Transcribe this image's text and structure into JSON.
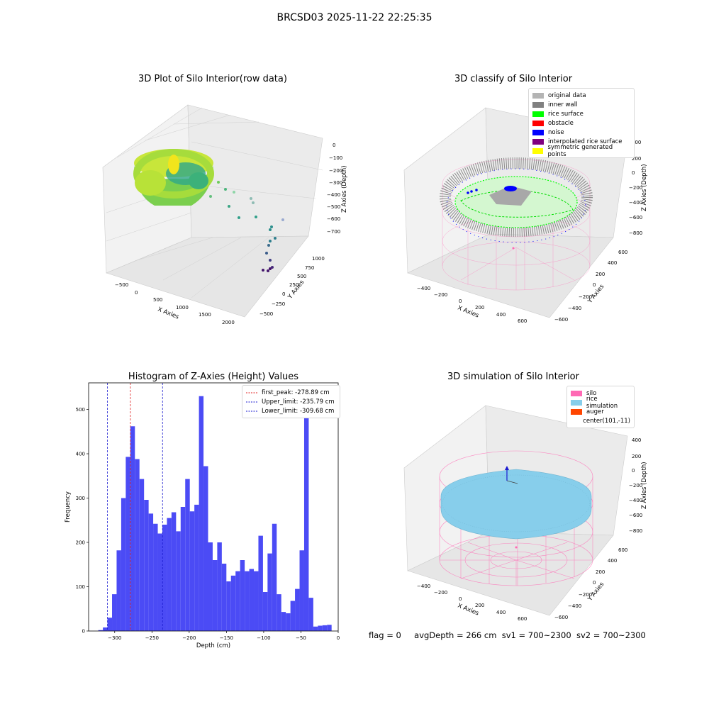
{
  "suptitle": "BRCSD03 2025-11-22 22:25:35",
  "colors": {
    "hist_bar": "#4b4bf5",
    "first_peak_line": "#e02020",
    "limit_line": "#1a1ad0",
    "silo_pink": "#ff69b4",
    "rice_blue": "#87ceeb",
    "auger": "#ff4500"
  },
  "plots": {
    "raw": {
      "title": "3D Plot of Silo Interior(row data)",
      "xlabel": "X Axies",
      "ylabel": "Y Axies",
      "zlabel": "Z Axies (Depth)",
      "xticks": [
        "−500",
        "0",
        "500",
        "1000",
        "1500",
        "2000"
      ],
      "yticks": [
        "−500",
        "−250",
        "0",
        "250",
        "500",
        "750",
        "1000"
      ],
      "zticks": [
        "0",
        "−100",
        "−200",
        "−300",
        "−400",
        "−500",
        "−600",
        "−700"
      ]
    },
    "classify": {
      "title": "3D classify of Silo Interior",
      "xlabel": "X Axies",
      "ylabel": "Y Axies",
      "zlabel": "Z Axies (Depth)",
      "xticks": [
        "−400",
        "−200",
        "0",
        "200",
        "400",
        "600"
      ],
      "yticks": [
        "−600",
        "−400",
        "−200",
        "0",
        "200",
        "400",
        "600"
      ],
      "zticks": [
        "400",
        "200",
        "0",
        "−200",
        "−400",
        "−600",
        "−800"
      ],
      "legend": [
        {
          "label": "original data",
          "color": "#b4b4b4"
        },
        {
          "label": "inner wall",
          "color": "#808080"
        },
        {
          "label": "rice surface",
          "color": "#00ff00"
        },
        {
          "label": "obstacle",
          "color": "#ff0000"
        },
        {
          "label": "noise",
          "color": "#0000ff"
        },
        {
          "label": "interpolated rice surface",
          "color": "#800080"
        },
        {
          "label": "symmetric generated points",
          "color": "#ffff00"
        }
      ]
    },
    "simulation": {
      "title": "3D simulation of Silo Interior",
      "xlabel": "X Axies",
      "ylabel": "Y Axies",
      "zlabel": "Z Axies (Depth)",
      "xticks": [
        "−400",
        "−200",
        "0",
        "200",
        "400",
        "600"
      ],
      "yticks": [
        "−600",
        "−400",
        "−200",
        "0",
        "200",
        "400",
        "600"
      ],
      "zticks": [
        "400",
        "200",
        "0",
        "−200",
        "−400",
        "−600",
        "−800"
      ],
      "legend": [
        {
          "label": "silo",
          "color": "#ff69b4"
        },
        {
          "label": "rice simulation",
          "color": "#87ceeb"
        },
        {
          "label": "auger",
          "color": "#ff4500"
        },
        {
          "label": "center(101,-11)",
          "color": ""
        }
      ]
    }
  },
  "chart_data": {
    "type": "bar",
    "title": "Histogram of Z-Axies (Height) Values",
    "xlabel": "Depth (cm)",
    "ylabel": "Frequency",
    "xlim": [
      -335,
      0
    ],
    "ylim": [
      0,
      560
    ],
    "xticks": [
      -300,
      -250,
      -200,
      -150,
      -100,
      -50,
      0
    ],
    "yticks": [
      0,
      100,
      200,
      300,
      400,
      500
    ],
    "bin_start": -322,
    "bin_width": 6.14,
    "values": [
      2,
      8,
      30,
      83,
      182,
      300,
      393,
      462,
      388,
      343,
      296,
      265,
      242,
      220,
      240,
      255,
      268,
      225,
      280,
      343,
      270,
      285,
      530,
      372,
      200,
      160,
      200,
      152,
      112,
      125,
      135,
      160,
      135,
      140,
      135,
      215,
      88,
      175,
      242,
      83,
      43,
      40,
      68,
      95,
      182,
      487,
      75,
      10,
      12,
      13,
      14
    ],
    "vlines": [
      {
        "label": "first_peak: -278.89 cm",
        "x": -278.89,
        "color": "red",
        "style": "dashed"
      },
      {
        "label": "Upper_limit: -235.79 cm",
        "x": -235.79,
        "color": "blue",
        "style": "dashed"
      },
      {
        "label": "Lower_limit: -309.68 cm",
        "x": -309.68,
        "color": "blue",
        "style": "dashed"
      }
    ]
  },
  "footer": {
    "flag": "flag = 0",
    "avg_depth": "avgDepth = 266 cm",
    "sv1": "sv1 = 700~2300",
    "sv2": "sv2 = 700~2300"
  }
}
